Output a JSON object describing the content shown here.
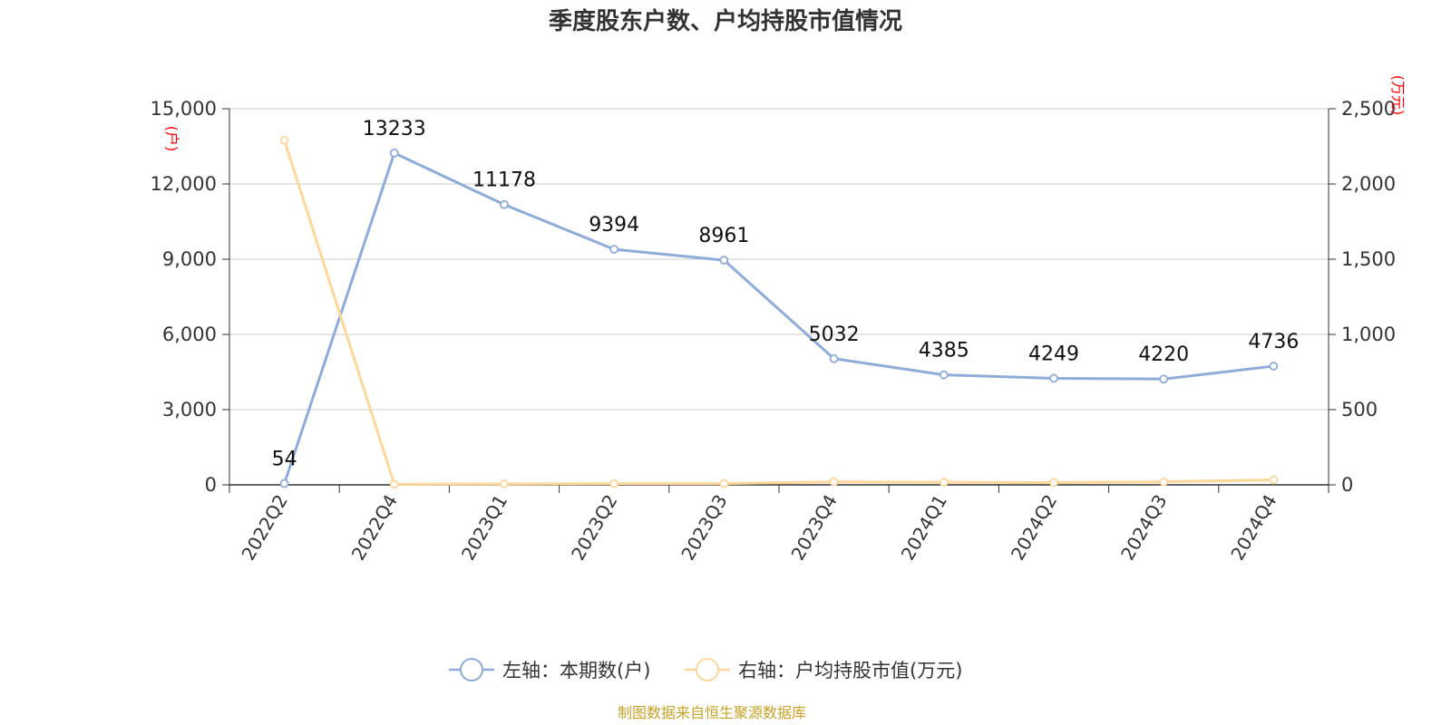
{
  "chart_data": {
    "type": "line",
    "title": "季度股东户数、户均持股市值情况",
    "categories": [
      "2022Q2",
      "2022Q4",
      "2023Q1",
      "2023Q2",
      "2023Q3",
      "2023Q4",
      "2024Q1",
      "2024Q2",
      "2024Q3",
      "2024Q4"
    ],
    "left_axis": {
      "unit_label": "(户)",
      "range": [
        0,
        15000
      ],
      "ticks": [
        0,
        3000,
        6000,
        9000,
        12000,
        15000
      ],
      "tick_labels": [
        "0",
        "3,000",
        "6,000",
        "9,000",
        "12,000",
        "15,000"
      ]
    },
    "right_axis": {
      "unit_label": "(万元)",
      "range": [
        0,
        2500
      ],
      "ticks": [
        0,
        500,
        1000,
        1500,
        2000,
        2500
      ],
      "tick_labels": [
        "0",
        "500",
        "1,000",
        "1,500",
        "2,000",
        "2,500"
      ]
    },
    "series": [
      {
        "name": "左轴：本期数(户)",
        "axis": "left",
        "color": "#8eacd9",
        "values": [
          54,
          13233,
          11178,
          9394,
          8961,
          5032,
          4385,
          4249,
          4220,
          4736
        ],
        "labels": [
          "54",
          "13233",
          "11178",
          "9394",
          "8961",
          "5032",
          "4385",
          "4249",
          "4220",
          "4736"
        ]
      },
      {
        "name": "右轴：户均持股市值(万元)",
        "axis": "right",
        "color": "#fdd89a",
        "values": [
          2290,
          4,
          6,
          8,
          8,
          20,
          17,
          15,
          20,
          33
        ]
      }
    ],
    "grid": true,
    "legend_position": "bottom"
  },
  "source_text": "制图数据来自恒生聚源数据库"
}
